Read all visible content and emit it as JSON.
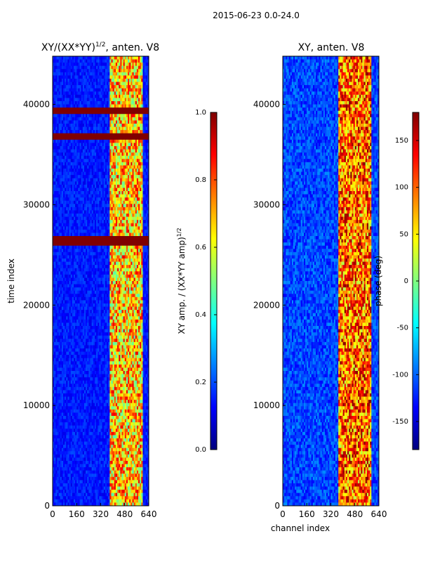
{
  "figure_title": "2015-06-23 0.0-24.0",
  "chart_data": [
    {
      "type": "heatmap",
      "title": "XY/(XX*YY)",
      "title_power": "1/2",
      "title_suffix": ", anten. V8",
      "xlabel": "",
      "ylabel": "time index",
      "xlim": [
        0,
        640
      ],
      "ylim": [
        0,
        44800
      ],
      "xticks": [
        "0",
        "160",
        "320",
        "480",
        "640"
      ],
      "yticks": [
        "0",
        "10000",
        "20000",
        "30000",
        "40000"
      ],
      "colorbar": {
        "label": "XY amp. / (XX*YY amp)",
        "label_power": "1/2",
        "range": [
          0.0,
          1.0
        ],
        "ticks": [
          "0.0",
          "0.2",
          "0.4",
          "0.6",
          "0.8",
          "1.0"
        ],
        "colormap": "jet"
      },
      "saturated_time_bands": [
        [
          26000,
          27000
        ],
        [
          36500,
          37200
        ],
        [
          39100,
          39600
        ]
      ]
    },
    {
      "type": "heatmap",
      "title": "XY, anten. V8",
      "xlabel": "channel index",
      "ylabel": "",
      "xlim": [
        0,
        640
      ],
      "ylim": [
        0,
        44800
      ],
      "xticks": [
        "0",
        "160",
        "320",
        "480",
        "640"
      ],
      "yticks": [
        "0",
        "10000",
        "20000",
        "30000",
        "40000"
      ],
      "colorbar": {
        "label": "phase (deg)",
        "range": [
          -180,
          180
        ],
        "ticks": [
          "-150",
          "-100",
          "-50",
          "0",
          "50",
          "100",
          "150"
        ],
        "colormap": "jet"
      }
    }
  ]
}
